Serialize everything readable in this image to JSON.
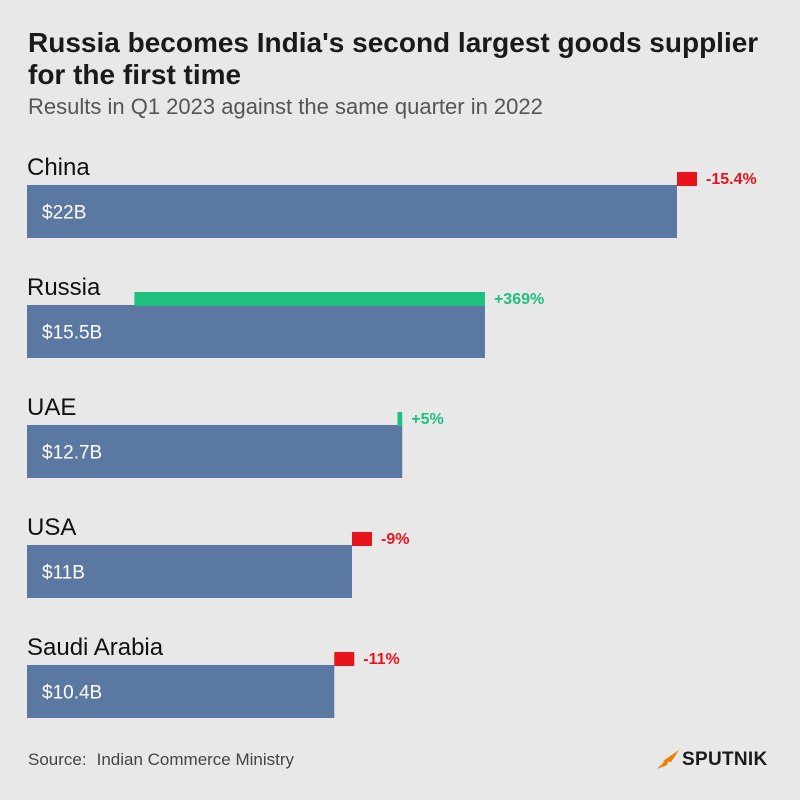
{
  "header": {
    "title": "Russia becomes India's second largest goods supplier for the first time",
    "subtitle": "Results in Q1 2023 against the same quarter in 2022"
  },
  "footer": {
    "source_label": "Source:",
    "source_text": "Indian Commerce Ministry",
    "brand": "SPUTNIK"
  },
  "colors": {
    "bar": "#5b78a3",
    "increase": "#1fbf7f",
    "decrease": "#e8141b",
    "brand_orange": "#f07d00"
  },
  "chart_data": {
    "type": "bar",
    "orientation": "horizontal",
    "categories": [
      "China",
      "Russia",
      "UAE",
      "USA",
      "Saudi Arabia"
    ],
    "values": [
      22,
      15.5,
      12.7,
      11,
      10.4
    ],
    "value_labels": [
      "$22B",
      "$15.5B",
      "$12.7B",
      "$11B",
      "$10.4B"
    ],
    "unit": "$B",
    "change_pct": [
      -15.4,
      369,
      5,
      -9,
      -11
    ],
    "change_labels": [
      "-15.4%",
      "+369%",
      "+5%",
      "-9%",
      "-11%"
    ],
    "title": "Russia becomes India's second largest goods supplier for the first time",
    "subtitle": "Results in Q1 2023 against the same quarter in 2022",
    "grid": false,
    "legend": "none"
  }
}
